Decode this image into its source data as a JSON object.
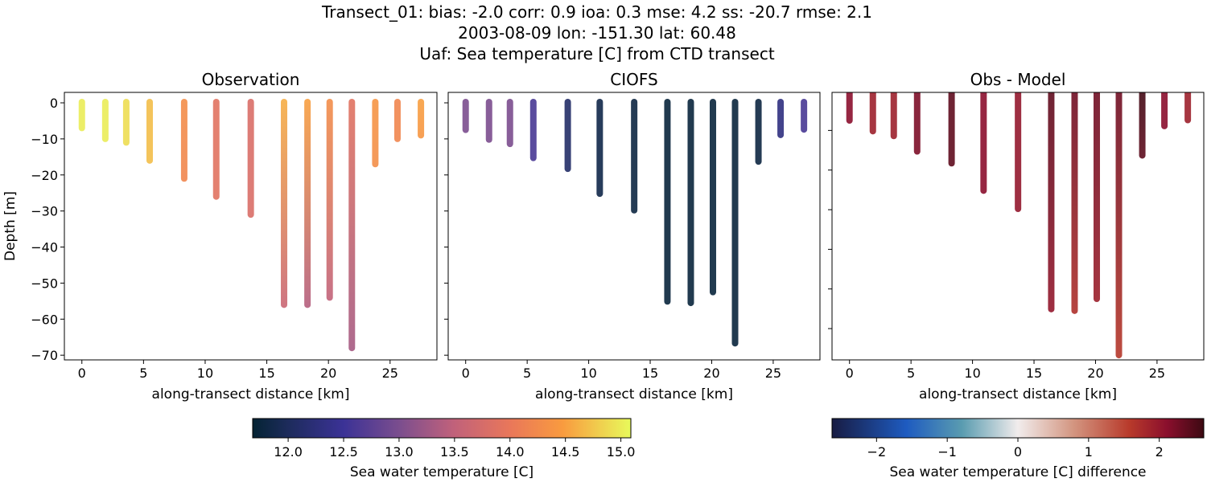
{
  "chart_data": {
    "type": "scatter",
    "title_lines": [
      "Transect_01: bias: -2.0  corr: 0.9  ioa: 0.3  mse: 4.2  ss: -20.7  rmse: 2.1",
      "2003-08-09 lon: -151.30 lat: 60.48",
      "Uaf: Sea temperature [C] from CTD transect"
    ],
    "xlabel": "along-transect distance [km]",
    "ylabel": "Depth [m]",
    "xlim": [
      -1.42,
      28.8
    ],
    "xticks": [
      0,
      5,
      10,
      15,
      20,
      25
    ],
    "station_distance_km": [
      0,
      1.9,
      3.6,
      5.5,
      8.3,
      10.9,
      13.7,
      16.4,
      18.3,
      20.1,
      21.9,
      23.8,
      25.6,
      27.5
    ],
    "panels": [
      {
        "title": "Observation",
        "colormap": "thermal",
        "ylim": [
          -71.3,
          2.9
        ],
        "yticks": [
          0,
          -10,
          -20,
          -30,
          -40,
          -50,
          -60,
          -70
        ],
        "show_ytick_labels": true,
        "max_depth_m": [
          7,
          10,
          11,
          16,
          21,
          26,
          31,
          56,
          56,
          54,
          68,
          17,
          10,
          9
        ],
        "value_top_bottom": [
          [
            15.0,
            15.0
          ],
          [
            15.0,
            15.0
          ],
          [
            14.9,
            14.9
          ],
          [
            14.7,
            14.7
          ],
          [
            14.3,
            14.2
          ],
          [
            13.9,
            13.9
          ],
          [
            13.8,
            13.8
          ],
          [
            14.6,
            13.6
          ],
          [
            14.5,
            13.4
          ],
          [
            14.3,
            13.5
          ],
          [
            13.9,
            13.3
          ],
          [
            14.4,
            14.3
          ],
          [
            14.2,
            14.2
          ],
          [
            14.5,
            14.4
          ]
        ]
      },
      {
        "title": "CIOFS",
        "colormap": "thermal",
        "ylim": [
          -71.3,
          2.9
        ],
        "yticks": [
          0,
          -10,
          -20,
          -30,
          -40,
          -50,
          -60,
          -70
        ],
        "show_ytick_labels": false,
        "max_depth_m": [
          7.5,
          10.2,
          11.4,
          15.3,
          18.3,
          25.2,
          29.8,
          55.1,
          55.5,
          52.5,
          66.7,
          16.3,
          8.9,
          7.4
        ],
        "value_top_bottom": [
          [
            13.0,
            13.0
          ],
          [
            13.0,
            13.0
          ],
          [
            13.0,
            13.0
          ],
          [
            12.6,
            12.6
          ],
          [
            12.1,
            12.1
          ],
          [
            11.85,
            11.85
          ],
          [
            11.8,
            11.8
          ],
          [
            11.75,
            11.75
          ],
          [
            11.75,
            11.75
          ],
          [
            11.75,
            11.75
          ],
          [
            11.75,
            11.75
          ],
          [
            11.8,
            11.8
          ],
          [
            12.3,
            12.3
          ],
          [
            12.6,
            12.6
          ]
        ]
      },
      {
        "title": "Obs - Model",
        "colormap": "balance",
        "ylim": [
          -67.9,
          -0.4
        ],
        "yticks": [
          -10,
          -20,
          -30,
          -40,
          -50,
          -60
        ],
        "show_ytick_labels": false,
        "max_depth_m": [
          7.5,
          10.2,
          11.4,
          15.3,
          18.3,
          25.2,
          29.8,
          55.1,
          55.5,
          52.5,
          66.7,
          16.3,
          8.9,
          7.4
        ],
        "value_top_bottom": [
          [
            2.1,
            2.1
          ],
          [
            1.9,
            1.9
          ],
          [
            1.9,
            1.9
          ],
          [
            2.2,
            2.2
          ],
          [
            2.4,
            2.4
          ],
          [
            2.1,
            2.1
          ],
          [
            2.0,
            2.0
          ],
          [
            2.4,
            2.0
          ],
          [
            2.3,
            1.7
          ],
          [
            2.3,
            1.9
          ],
          [
            2.3,
            1.6
          ],
          [
            2.6,
            2.4
          ],
          [
            2.1,
            2.1
          ],
          [
            1.9,
            1.9
          ]
        ]
      }
    ],
    "colorbars": [
      {
        "label": "Sea water temperature [C]",
        "range": [
          11.68,
          15.09
        ],
        "ticks": [
          "12.0",
          "12.5",
          "13.0",
          "13.5",
          "14.0",
          "14.5",
          "15.0"
        ],
        "colormap": "thermal"
      },
      {
        "label": "Sea water temperature [C] difference",
        "range": [
          -2.63,
          2.63
        ],
        "ticks": [
          "−2",
          "−1",
          "0",
          "1",
          "2"
        ],
        "colormap": "balance"
      }
    ],
    "colormaps": {
      "thermal": [
        [
          0,
          "#042333"
        ],
        [
          0.09,
          "#1c2b5a"
        ],
        [
          0.24,
          "#3b3296"
        ],
        [
          0.39,
          "#7c4e8e"
        ],
        [
          0.53,
          "#c0617b"
        ],
        [
          0.68,
          "#e9775a"
        ],
        [
          0.82,
          "#f99b3f"
        ],
        [
          1,
          "#e8fa5b"
        ]
      ],
      "balance": [
        [
          0,
          "#181c43"
        ],
        [
          0.2,
          "#1e5bc0"
        ],
        [
          0.35,
          "#5a9cb0"
        ],
        [
          0.5,
          "#f1ecec"
        ],
        [
          0.65,
          "#d39580"
        ],
        [
          0.8,
          "#b83a2b"
        ],
        [
          0.9,
          "#8b0f2d"
        ],
        [
          1,
          "#3c0912"
        ]
      ]
    },
    "grid": false
  }
}
